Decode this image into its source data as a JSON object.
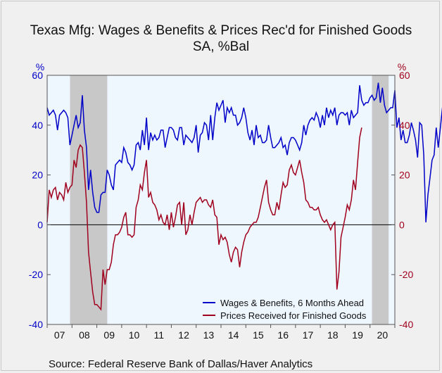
{
  "title": "Texas Mfg: Wages & Benefits & Prices Rec'd for Finished Goods",
  "subtitle": "SA, %Bal",
  "source": "Source:  Federal Reserve Bank of Dallas/Haver Analytics",
  "colors": {
    "plot_bg": "#eef6fe",
    "recession": "#c8c8c8",
    "wages": "#0000c8",
    "prices": "#a0001e",
    "left_axis": "#0000c8",
    "right_axis": "#a0001e"
  },
  "chart_data": {
    "type": "line",
    "x_start": 2007.0,
    "x_end": 2021.0,
    "ylim": [
      -40,
      60
    ],
    "y_ticks": [
      "60",
      "40",
      "20",
      "0",
      "-20",
      "-40"
    ],
    "left_unit": "%",
    "right_unit": "%",
    "x_tick_labels": [
      "07",
      "08",
      "09",
      "10",
      "11",
      "12",
      "13",
      "14",
      "15",
      "16",
      "17",
      "18",
      "19",
      "20"
    ],
    "zero_line": true,
    "legend_position": "bottom-right",
    "recessions": [
      [
        2007.92,
        2009.42
      ],
      [
        2020.08,
        2020.75
      ]
    ],
    "series": [
      {
        "name": "Wages & Benefits, 6 Months Ahead",
        "axis": "left",
        "start": 2007.0,
        "step": 0.08333,
        "values": [
          47,
          44,
          45,
          46,
          44,
          38,
          44,
          45,
          46,
          45,
          43,
          32,
          36,
          40,
          44,
          39,
          41,
          52,
          38,
          31,
          14,
          22,
          13,
          7,
          5,
          5,
          12,
          13,
          13,
          22,
          20,
          16,
          14,
          24,
          25,
          26,
          25,
          31,
          29,
          25,
          24,
          22,
          24,
          32,
          33,
          30,
          38,
          32,
          43,
          30,
          37,
          34,
          36,
          34,
          35,
          38,
          38,
          31,
          35,
          39,
          39,
          38,
          35,
          34,
          39,
          39,
          32,
          36,
          35,
          34,
          33,
          35,
          40,
          29,
          36,
          37,
          41,
          40,
          34,
          44,
          34,
          43,
          49,
          46,
          48,
          50,
          41,
          47,
          45,
          47,
          44,
          44,
          40,
          41,
          43,
          47,
          43,
          37,
          34,
          38,
          32,
          40,
          35,
          36,
          33,
          33,
          34,
          40,
          35,
          31,
          31,
          32,
          33,
          35,
          31,
          32,
          28,
          33,
          35,
          35,
          34,
          32,
          30,
          33,
          40,
          36,
          40,
          42,
          43,
          42,
          45,
          43,
          39,
          44,
          40,
          47,
          43,
          46,
          44,
          47,
          40,
          44,
          45,
          45,
          44,
          45,
          40,
          46,
          43,
          44,
          45,
          56,
          50,
          48,
          49,
          49,
          51,
          52,
          50,
          51,
          57,
          49,
          55,
          48,
          45,
          46,
          47,
          47,
          54,
          39,
          43,
          34,
          38,
          33,
          33,
          36,
          41,
          38,
          34,
          27,
          41,
          40,
          28,
          1,
          12,
          19,
          26,
          28,
          39,
          31,
          39,
          47,
          48,
          52,
          43,
          50
        ]
      },
      {
        "name": "Prices Received for Finished Goods",
        "axis": "right",
        "start": 2007.0,
        "step": 0.08333,
        "values": [
          1,
          14,
          11,
          14,
          15,
          10,
          13,
          12,
          10,
          17,
          13,
          15,
          16,
          26,
          23,
          30,
          32,
          31,
          21,
          9,
          -11,
          -19,
          -27,
          -32,
          -32,
          -33,
          -34,
          -18,
          -24,
          -18,
          -18,
          -15,
          -8,
          -4,
          -4,
          -3,
          -1,
          3,
          5,
          -4,
          -4,
          -5,
          -4,
          7,
          10,
          16,
          14,
          21,
          26,
          11,
          13,
          9,
          8,
          6,
          2,
          4,
          1,
          0,
          4,
          -2,
          5,
          -1,
          3,
          8,
          9,
          0,
          9,
          -4,
          -2,
          4,
          0,
          5,
          9,
          10,
          11,
          9,
          10,
          10,
          8,
          7,
          10,
          4,
          3,
          -8,
          -4,
          -6,
          -5,
          -7,
          -12,
          -15,
          -11,
          -9,
          -10,
          -17,
          -11,
          -7,
          -4,
          -3,
          -1,
          0,
          1,
          1,
          3,
          7,
          11,
          15,
          18,
          9,
          6,
          4,
          4,
          9,
          6,
          12,
          17,
          15,
          16,
          22,
          24,
          21,
          20,
          23,
          26,
          21,
          17,
          10,
          9,
          7,
          7,
          6,
          6,
          7,
          4,
          2,
          1,
          2,
          0,
          -2,
          0,
          1,
          -26,
          -19,
          -5,
          -1,
          3,
          8,
          6,
          10,
          18,
          14,
          25,
          35,
          39
        ]
      }
    ]
  }
}
